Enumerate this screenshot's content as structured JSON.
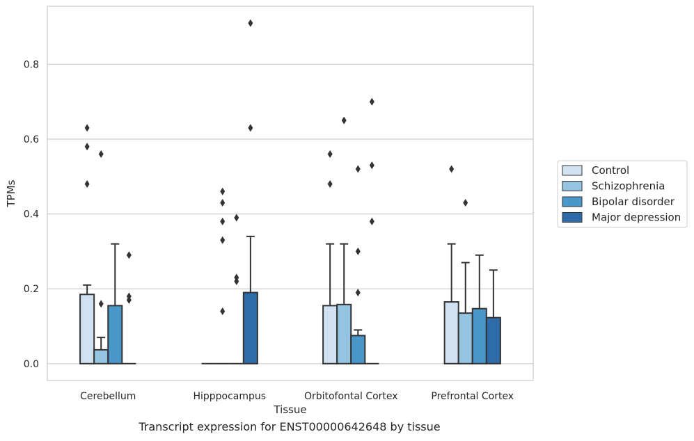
{
  "caption": "Transcript expression for ENST00000642648 by tissue",
  "chart_data": {
    "type": "bar",
    "xlabel": "Tissue",
    "ylabel": "TPMs",
    "ylim": [
      -0.045,
      0.955
    ],
    "yticks": [
      0.0,
      0.2,
      0.4,
      0.6,
      0.8
    ],
    "ytick_labels": [
      "0.0",
      "0.2",
      "0.4",
      "0.6",
      "0.8"
    ],
    "grid": true,
    "legend_position": "right",
    "categories": [
      "Cerebellum",
      "Hipppocampus",
      "Orbitofontal Cortex",
      "Prefrontal Cortex"
    ],
    "series": [
      {
        "name": "Control",
        "color": "#d0e1f2",
        "values": [
          0.185,
          0.0,
          0.155,
          0.165
        ],
        "err_upper": [
          0.21,
          0.0,
          0.32,
          0.32
        ],
        "outliers": [
          [
            0.63,
            0.58,
            0.48
          ],
          [],
          [
            0.56,
            0.48
          ],
          [
            0.52
          ]
        ]
      },
      {
        "name": "Schizophrenia",
        "color": "#94c4df",
        "values": [
          0.037,
          0.0,
          0.158,
          0.135
        ],
        "err_upper": [
          0.07,
          0.0,
          0.32,
          0.27
        ],
        "outliers": [
          [
            0.56,
            0.16
          ],
          [
            0.46,
            0.43,
            0.38,
            0.33,
            0.14
          ],
          [
            0.65
          ],
          [
            0.43
          ]
        ]
      },
      {
        "name": "Bipolar disorder",
        "color": "#4a98c9",
        "values": [
          0.155,
          0.0,
          0.075,
          0.147
        ],
        "err_upper": [
          0.32,
          0.0,
          0.09,
          0.29
        ],
        "outliers": [
          [],
          [
            0.39,
            0.23,
            0.22
          ],
          [
            0.52,
            0.3,
            0.19
          ],
          []
        ]
      },
      {
        "name": "Major depression",
        "color": "#2f6ba8",
        "values": [
          0.0,
          0.19,
          0.0,
          0.123
        ],
        "err_upper": [
          0.0,
          0.34,
          0.0,
          0.25
        ],
        "outliers": [
          [
            0.29,
            0.18,
            0.17
          ],
          [
            0.91,
            0.63
          ],
          [
            0.7,
            0.53,
            0.38
          ],
          []
        ]
      }
    ]
  }
}
